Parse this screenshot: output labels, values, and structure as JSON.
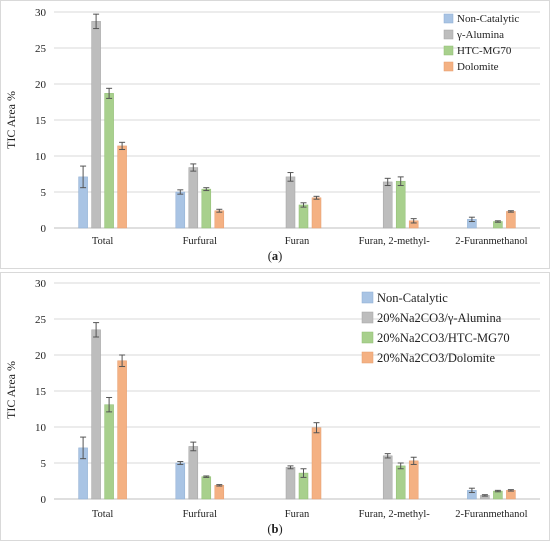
{
  "colors": {
    "series": [
      "#a9c4e4",
      "#bdbdbd",
      "#a8d08d",
      "#f4b183"
    ],
    "series_stroke": [
      "#8eadd1",
      "#a4a4a4",
      "#8fbd72",
      "#e69c6d"
    ],
    "grid": "#d9d9d9",
    "axis": "#bfbfbf",
    "error": "#555555"
  },
  "chart_data": [
    {
      "type": "bar",
      "panel_label": "a",
      "caption_open": "(",
      "caption_close": ")",
      "ylabel": "TIC Area %",
      "ylim": [
        0,
        30
      ],
      "yticks": [
        0,
        5,
        10,
        15,
        20,
        25,
        30
      ],
      "grid": true,
      "legend_position": "top-right",
      "categories": [
        "Total",
        "Furfural",
        "Furan",
        "Furan, 2-methyl-",
        "2-Furanmethanol"
      ],
      "series": [
        {
          "name": "Non-Catalytic",
          "values": [
            7.1,
            5.0,
            0,
            0,
            1.2
          ],
          "errors": [
            1.5,
            0.3,
            0,
            0,
            0.3
          ]
        },
        {
          "name": "γ-Alumina",
          "values": [
            28.7,
            8.4,
            7.1,
            6.4,
            0
          ],
          "errors": [
            1.0,
            0.5,
            0.6,
            0.5,
            0
          ]
        },
        {
          "name": "HTC-MG70",
          "values": [
            18.7,
            5.4,
            3.2,
            6.5,
            0.9
          ],
          "errors": [
            0.7,
            0.2,
            0.3,
            0.6,
            0.1
          ]
        },
        {
          "name": "Dolomite",
          "values": [
            11.4,
            2.4,
            4.2,
            1.0,
            2.3
          ],
          "errors": [
            0.5,
            0.2,
            0.2,
            0.3,
            0.1
          ]
        }
      ]
    },
    {
      "type": "bar",
      "panel_label": "b",
      "caption_open": "(",
      "caption_close": ")",
      "ylabel": "TIC Area %",
      "ylim": [
        0,
        30
      ],
      "yticks": [
        0,
        5,
        10,
        15,
        20,
        25,
        30
      ],
      "grid": true,
      "legend_position": "top-right",
      "categories": [
        "Total",
        "Furfural",
        "Furan",
        "Furan, 2-methyl-",
        "2-Furanmethanol"
      ],
      "series": [
        {
          "name": "Non-Catalytic",
          "values": [
            7.1,
            5.0,
            0,
            0,
            1.2
          ],
          "errors": [
            1.5,
            0.2,
            0,
            0,
            0.3
          ]
        },
        {
          "name": "20%Na2CO3/γ-Alumina",
          "values": [
            23.5,
            7.3,
            4.4,
            6.0,
            0.5
          ],
          "errors": [
            1.0,
            0.6,
            0.2,
            0.3,
            0.1
          ]
        },
        {
          "name": "20%Na2CO3/HTC-MG70",
          "values": [
            13.1,
            3.1,
            3.6,
            4.6,
            1.1
          ],
          "errors": [
            1.0,
            0.1,
            0.6,
            0.4,
            0.1
          ]
        },
        {
          "name": "20%Na2CO3/Dolomite",
          "values": [
            19.2,
            1.9,
            9.9,
            5.3,
            1.2
          ],
          "errors": [
            0.8,
            0.1,
            0.7,
            0.5,
            0.1
          ]
        }
      ]
    }
  ]
}
